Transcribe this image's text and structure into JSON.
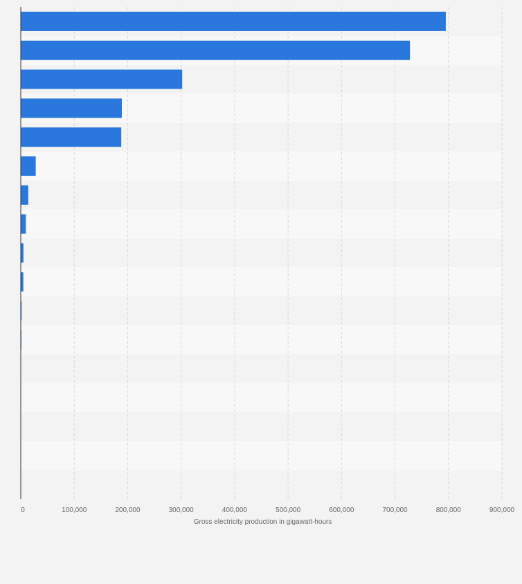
{
  "chart_data": {
    "type": "bar",
    "orientation": "horizontal",
    "title": "",
    "xlabel": "Gross electricity production in gigawatt-hours",
    "ylabel": "",
    "xlim": [
      0,
      900000
    ],
    "x_ticks": [
      0,
      100000,
      200000,
      300000,
      400000,
      500000,
      600000,
      700000,
      800000,
      900000
    ],
    "x_tick_labels": [
      "0",
      "100,000",
      "200,000",
      "300,000",
      "400,000",
      "500,000",
      "600,000",
      "700,000",
      "800,000",
      "900,000"
    ],
    "category_count": 17,
    "values": [
      795000,
      728000,
      302000,
      189000,
      188000,
      28000,
      14000,
      9500,
      5000,
      4800,
      1500,
      1200,
      0,
      0,
      0,
      0,
      0
    ],
    "bar_color": "#2a78de",
    "grid": true,
    "legend": "none"
  }
}
